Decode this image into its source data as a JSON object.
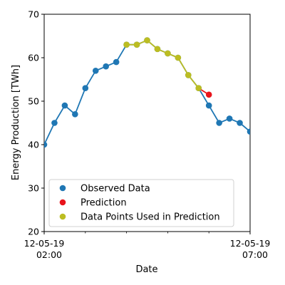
{
  "chart_data": {
    "type": "line",
    "xlabel": "Date",
    "ylabel": "Energy Production [TWh]",
    "ylim": [
      20,
      70
    ],
    "yticks": [
      20,
      30,
      40,
      50,
      60,
      70
    ],
    "xlim": [
      "2019-12-05T02:00",
      "2019-12-05T07:00"
    ],
    "xtick_labels": [
      {
        "line1": "12-05-19",
        "line2": "02:00"
      },
      {
        "line1": "12-05-19",
        "line2": "07:00"
      }
    ],
    "x": [
      "02:00",
      "02:15",
      "02:30",
      "02:45",
      "03:00",
      "03:15",
      "03:30",
      "03:45",
      "04:00",
      "04:15",
      "04:30",
      "04:45",
      "05:00",
      "05:15",
      "05:30",
      "05:45",
      "06:00",
      "06:15",
      "06:30",
      "06:45",
      "07:00"
    ],
    "series": [
      {
        "name": "Observed Data",
        "color": "#1f77b4",
        "values": [
          40,
          45,
          49,
          47,
          53,
          57,
          58,
          59,
          63,
          63,
          64,
          62,
          61,
          60,
          56,
          53,
          49,
          45,
          46,
          45,
          43
        ]
      },
      {
        "name": "Prediction",
        "color": "#e8141c",
        "x": [
          "06:00"
        ],
        "values": [
          51.5
        ]
      },
      {
        "name": "Data Points Used in Prediction",
        "color": "#bcbd22",
        "x": [
          "04:00",
          "04:15",
          "04:30",
          "04:45",
          "05:00",
          "05:15",
          "05:30",
          "05:45"
        ],
        "values": [
          63,
          63,
          64,
          62,
          61,
          60,
          56,
          53
        ]
      }
    ],
    "legend": {
      "placement": "lower-left",
      "entries": [
        "Observed Data",
        "Prediction",
        "Data Points Used in Prediction"
      ]
    },
    "grid": false
  }
}
